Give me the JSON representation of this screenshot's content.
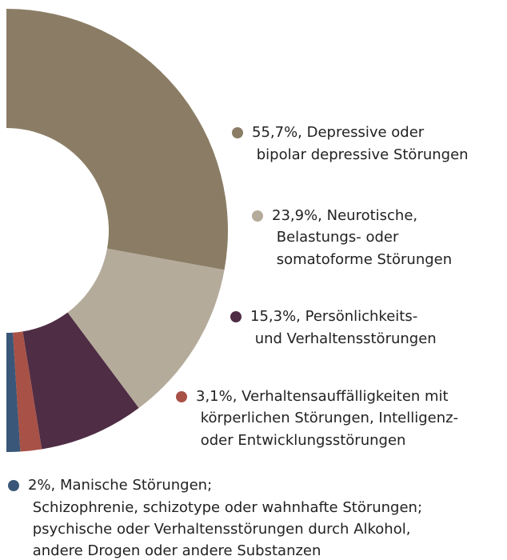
{
  "chart_data": {
    "type": "donut",
    "categories": [
      "55,7%, Depressive oder bipolar depressive Störungen",
      "23,9%, Neurotische, Belastungs- oder somatoforme Störungen",
      "15,3%, Persönlichkeits- und Verhaltensstörungen",
      "3,1%, Verhaltensauffälligkeiten mit körperlichen Störungen, Intelligenz- oder Entwicklungsstörungen",
      "2%, Manische Störungen; Schizophrenie, schizotype oder wahnhafte Störungen; psychische oder Verhaltensstörungen durch Alkohol, andere Drogen oder andere Substanzen"
    ],
    "values": [
      55.7,
      23.9,
      15.3,
      3.1,
      2
    ],
    "value_labels": [
      "55,7%",
      "23,9%",
      "15,3%",
      "3,1%",
      "2%"
    ],
    "colors": [
      "#8b7d65",
      "#b5ab9b",
      "#4f2d45",
      "#a85146",
      "#3a5678"
    ]
  }
}
